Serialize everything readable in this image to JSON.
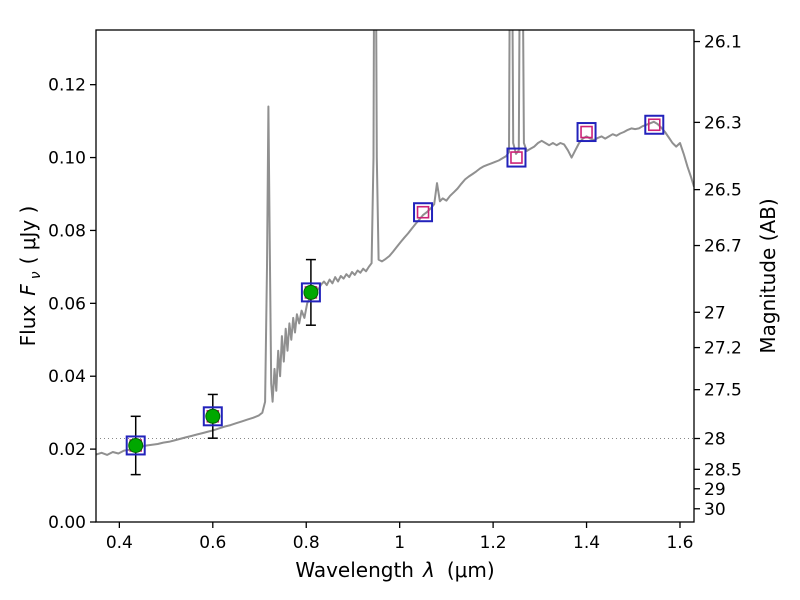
{
  "figure": {
    "background": "#ffffff",
    "frame_color": "#000000"
  },
  "chart_data": {
    "type": "line",
    "title": "",
    "xlabel": {
      "name": "Wavelength",
      "symbol": "λ",
      "unit": "(μm)"
    },
    "ylabel_left": {
      "name": "Flux",
      "symbol": "F",
      "subscript": "ν",
      "unit": "( μJy )"
    },
    "ylabel_right": "Magnitude (AB)",
    "xlim": [
      0.35,
      1.63
    ],
    "ylim": [
      0,
      0.135
    ],
    "grid": "dotted-horizontal",
    "legend": "none",
    "x_ticks": [
      {
        "v": 0.4,
        "label": "0.4"
      },
      {
        "v": 0.6,
        "label": "0.6"
      },
      {
        "v": 0.8,
        "label": "0.8"
      },
      {
        "v": 1.0,
        "label": "1"
      },
      {
        "v": 1.2,
        "label": "1.2"
      },
      {
        "v": 1.4,
        "label": "1.4"
      },
      {
        "v": 1.6,
        "label": "1.6"
      }
    ],
    "y_ticks_left": [
      {
        "v": 0.0,
        "label": "0.00"
      },
      {
        "v": 0.02,
        "label": "0.02"
      },
      {
        "v": 0.04,
        "label": "0.04"
      },
      {
        "v": 0.06,
        "label": "0.06"
      },
      {
        "v": 0.08,
        "label": "0.08"
      },
      {
        "v": 0.1,
        "label": "0.10"
      },
      {
        "v": 0.12,
        "label": "0.12"
      }
    ],
    "y_ticks_right": [
      {
        "flux": 0.13183,
        "label": "26.1"
      },
      {
        "flux": 0.10965,
        "label": "26.3"
      },
      {
        "flux": 0.0912,
        "label": "26.5"
      },
      {
        "flux": 0.07586,
        "label": "26.7"
      },
      {
        "flux": 0.05754,
        "label": "27"
      },
      {
        "flux": 0.04786,
        "label": "27.2"
      },
      {
        "flux": 0.03631,
        "label": "27.5"
      },
      {
        "flux": 0.02291,
        "label": "28"
      },
      {
        "flux": 0.01445,
        "label": "28.5"
      },
      {
        "flux": 0.00912,
        "label": "29"
      },
      {
        "flux": 0.00363,
        "label": "30"
      }
    ],
    "grid_dotted_flux_levels": [
      0.02291
    ],
    "series": {
      "spectrum": {
        "name": "model-spectrum",
        "color": "#909090",
        "linewidth": 2,
        "points": [
          [
            0.35,
            0.0185
          ],
          [
            0.362,
            0.019
          ],
          [
            0.374,
            0.0184
          ],
          [
            0.386,
            0.0192
          ],
          [
            0.398,
            0.0188
          ],
          [
            0.41,
            0.0196
          ],
          [
            0.422,
            0.0198
          ],
          [
            0.434,
            0.0204
          ],
          [
            0.446,
            0.0206
          ],
          [
            0.458,
            0.021
          ],
          [
            0.47,
            0.0212
          ],
          [
            0.482,
            0.0214
          ],
          [
            0.494,
            0.0218
          ],
          [
            0.506,
            0.022
          ],
          [
            0.518,
            0.0224
          ],
          [
            0.53,
            0.0228
          ],
          [
            0.542,
            0.0232
          ],
          [
            0.554,
            0.0236
          ],
          [
            0.566,
            0.024
          ],
          [
            0.578,
            0.0244
          ],
          [
            0.59,
            0.0248
          ],
          [
            0.602,
            0.0252
          ],
          [
            0.614,
            0.0257
          ],
          [
            0.626,
            0.0262
          ],
          [
            0.638,
            0.0266
          ],
          [
            0.65,
            0.0271
          ],
          [
            0.662,
            0.0276
          ],
          [
            0.674,
            0.0281
          ],
          [
            0.686,
            0.0286
          ],
          [
            0.698,
            0.0292
          ],
          [
            0.706,
            0.03
          ],
          [
            0.712,
            0.033
          ],
          [
            0.716,
            0.07
          ],
          [
            0.719,
            0.114
          ],
          [
            0.722,
            0.075
          ],
          [
            0.725,
            0.038
          ],
          [
            0.728,
            0.033
          ],
          [
            0.732,
            0.042
          ],
          [
            0.736,
            0.036
          ],
          [
            0.74,
            0.047
          ],
          [
            0.744,
            0.04
          ],
          [
            0.748,
            0.051
          ],
          [
            0.752,
            0.044
          ],
          [
            0.756,
            0.053
          ],
          [
            0.76,
            0.047
          ],
          [
            0.764,
            0.0545
          ],
          [
            0.768,
            0.05
          ],
          [
            0.772,
            0.056
          ],
          [
            0.776,
            0.052
          ],
          [
            0.78,
            0.057
          ],
          [
            0.785,
            0.0545
          ],
          [
            0.79,
            0.058
          ],
          [
            0.796,
            0.056
          ],
          [
            0.802,
            0.06
          ],
          [
            0.808,
            0.0615
          ],
          [
            0.814,
            0.063
          ],
          [
            0.82,
            0.0645
          ],
          [
            0.826,
            0.0638
          ],
          [
            0.832,
            0.0652
          ],
          [
            0.838,
            0.066
          ],
          [
            0.844,
            0.065
          ],
          [
            0.85,
            0.0665
          ],
          [
            0.856,
            0.0655
          ],
          [
            0.862,
            0.0672
          ],
          [
            0.868,
            0.066
          ],
          [
            0.874,
            0.0675
          ],
          [
            0.88,
            0.0668
          ],
          [
            0.886,
            0.068
          ],
          [
            0.892,
            0.0672
          ],
          [
            0.898,
            0.0686
          ],
          [
            0.904,
            0.0678
          ],
          [
            0.91,
            0.069
          ],
          [
            0.916,
            0.0684
          ],
          [
            0.922,
            0.0695
          ],
          [
            0.928,
            0.0688
          ],
          [
            0.934,
            0.07
          ],
          [
            0.94,
            0.071
          ],
          [
            0.944,
            0.1
          ],
          [
            0.947,
            0.22
          ],
          [
            0.951,
            0.1
          ],
          [
            0.955,
            0.072
          ],
          [
            0.962,
            0.0715
          ],
          [
            0.97,
            0.0722
          ],
          [
            0.978,
            0.073
          ],
          [
            0.986,
            0.0742
          ],
          [
            0.994,
            0.0755
          ],
          [
            1.002,
            0.0768
          ],
          [
            1.01,
            0.078
          ],
          [
            1.018,
            0.0792
          ],
          [
            1.026,
            0.0805
          ],
          [
            1.034,
            0.0818
          ],
          [
            1.042,
            0.083
          ],
          [
            1.05,
            0.0842
          ],
          [
            1.058,
            0.085
          ],
          [
            1.066,
            0.086
          ],
          [
            1.074,
            0.0872
          ],
          [
            1.08,
            0.093
          ],
          [
            1.086,
            0.088
          ],
          [
            1.092,
            0.0888
          ],
          [
            1.1,
            0.0882
          ],
          [
            1.108,
            0.0895
          ],
          [
            1.116,
            0.0905
          ],
          [
            1.124,
            0.0915
          ],
          [
            1.132,
            0.0928
          ],
          [
            1.14,
            0.094
          ],
          [
            1.148,
            0.0948
          ],
          [
            1.156,
            0.0955
          ],
          [
            1.164,
            0.0962
          ],
          [
            1.172,
            0.097
          ],
          [
            1.18,
            0.0976
          ],
          [
            1.188,
            0.098
          ],
          [
            1.196,
            0.0984
          ],
          [
            1.204,
            0.0988
          ],
          [
            1.212,
            0.0992
          ],
          [
            1.22,
            0.0998
          ],
          [
            1.228,
            0.1004
          ],
          [
            1.234,
            0.1015
          ],
          [
            1.238,
            0.22
          ],
          [
            1.243,
            0.104
          ],
          [
            1.249,
            0.101
          ],
          [
            1.255,
            0.102
          ],
          [
            1.26,
            0.22
          ],
          [
            1.266,
            0.104
          ],
          [
            1.272,
            0.1018
          ],
          [
            1.28,
            0.1024
          ],
          [
            1.288,
            0.103
          ],
          [
            1.296,
            0.104
          ],
          [
            1.304,
            0.1046
          ],
          [
            1.312,
            0.104
          ],
          [
            1.32,
            0.1034
          ],
          [
            1.328,
            0.104
          ],
          [
            1.336,
            0.1034
          ],
          [
            1.344,
            0.104
          ],
          [
            1.352,
            0.1036
          ],
          [
            1.36,
            0.102
          ],
          [
            1.368,
            0.1
          ],
          [
            1.376,
            0.102
          ],
          [
            1.384,
            0.104
          ],
          [
            1.392,
            0.1052
          ],
          [
            1.4,
            0.1058
          ],
          [
            1.408,
            0.1052
          ],
          [
            1.416,
            0.1048
          ],
          [
            1.424,
            0.1054
          ],
          [
            1.432,
            0.1058
          ],
          [
            1.44,
            0.1052
          ],
          [
            1.448,
            0.1058
          ],
          [
            1.456,
            0.1064
          ],
          [
            1.464,
            0.106
          ],
          [
            1.472,
            0.1066
          ],
          [
            1.48,
            0.107
          ],
          [
            1.488,
            0.1076
          ],
          [
            1.496,
            0.108
          ],
          [
            1.504,
            0.1078
          ],
          [
            1.512,
            0.108
          ],
          [
            1.52,
            0.1086
          ],
          [
            1.528,
            0.109
          ],
          [
            1.536,
            0.1094
          ],
          [
            1.544,
            0.1098
          ],
          [
            1.552,
            0.1092
          ],
          [
            1.56,
            0.1082
          ],
          [
            1.568,
            0.107
          ],
          [
            1.576,
            0.1055
          ],
          [
            1.584,
            0.104
          ],
          [
            1.592,
            0.103
          ],
          [
            1.6,
            0.104
          ],
          [
            1.608,
            0.101
          ],
          [
            1.616,
            0.0975
          ],
          [
            1.624,
            0.0945
          ],
          [
            1.63,
            0.092
          ]
        ]
      },
      "model_photometry": {
        "name": "model-photometry",
        "marker": "open-square",
        "outer_color": "#2222bb",
        "inner_color": "#cc2277",
        "points": [
          [
            0.435,
            0.021
          ],
          [
            0.6,
            0.029
          ],
          [
            0.81,
            0.063
          ],
          [
            1.05,
            0.085
          ],
          [
            1.25,
            0.1
          ],
          [
            1.4,
            0.107
          ],
          [
            1.545,
            0.109
          ]
        ]
      },
      "observed_photometry": {
        "name": "observed-photometry",
        "marker": "filled-circle",
        "color": "#00a800",
        "edge_color": "#006600",
        "error_color": "#000000",
        "points": [
          {
            "x": 0.435,
            "y": 0.021,
            "yerr": 0.008
          },
          {
            "x": 0.6,
            "y": 0.029,
            "yerr": 0.006
          },
          {
            "x": 0.81,
            "y": 0.063,
            "yerr": 0.009
          }
        ]
      }
    }
  }
}
